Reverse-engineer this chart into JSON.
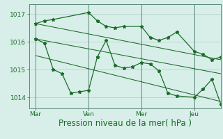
{
  "bg_color": "#d8eee8",
  "grid_color": "#b0ccc8",
  "line_color": "#1a6b2a",
  "vline_color": "#5a8a7a",
  "ylim": [
    1013.6,
    1017.35
  ],
  "xlim": [
    -0.5,
    43
  ],
  "xtick_labels": [
    "Mar",
    "Ven",
    "Mer",
    "Jeu"
  ],
  "xtick_positions": [
    1,
    13,
    25,
    37
  ],
  "ytick_labels": [
    "1014",
    "1015",
    "1016",
    "1017"
  ],
  "ytick_values": [
    1014,
    1015,
    1016,
    1017
  ],
  "vline_positions": [
    1,
    13,
    25,
    37
  ],
  "series1_x": [
    1,
    3,
    5,
    13,
    15,
    17,
    19,
    21,
    25,
    27,
    29,
    31,
    33,
    37,
    39,
    41,
    43
  ],
  "series1_y": [
    1016.65,
    1016.75,
    1016.8,
    1017.05,
    1016.75,
    1016.55,
    1016.5,
    1016.55,
    1016.55,
    1016.15,
    1016.05,
    1016.15,
    1016.35,
    1015.65,
    1015.55,
    1015.35,
    1015.45
  ],
  "series2_x": [
    1,
    3,
    5,
    7,
    9,
    11,
    13,
    15,
    17,
    19,
    21,
    23,
    25,
    27,
    29,
    31,
    33,
    37,
    39,
    41,
    43
  ],
  "series2_y": [
    1016.1,
    1015.95,
    1015.0,
    1014.85,
    1014.15,
    1014.2,
    1014.25,
    1015.45,
    1016.05,
    1015.15,
    1015.05,
    1015.1,
    1015.25,
    1015.2,
    1014.95,
    1014.15,
    1014.05,
    1014.0,
    1014.3,
    1014.65,
    1013.75
  ],
  "trend1_x": [
    1,
    43
  ],
  "trend1_y": [
    1016.65,
    1015.35
  ],
  "trend2_x": [
    1,
    43
  ],
  "trend2_y": [
    1016.1,
    1014.85
  ],
  "trend3_x": [
    1,
    43
  ],
  "trend3_y": [
    1015.5,
    1013.85
  ],
  "xlabel": "Pression niveau de la mer( hPa )",
  "marker": "*",
  "markersize": 3.5,
  "linewidth": 0.9,
  "trend_linewidth": 0.75,
  "font_color": "#1a6b2a",
  "tick_fontsize": 6.5,
  "xlabel_fontsize": 8.5
}
